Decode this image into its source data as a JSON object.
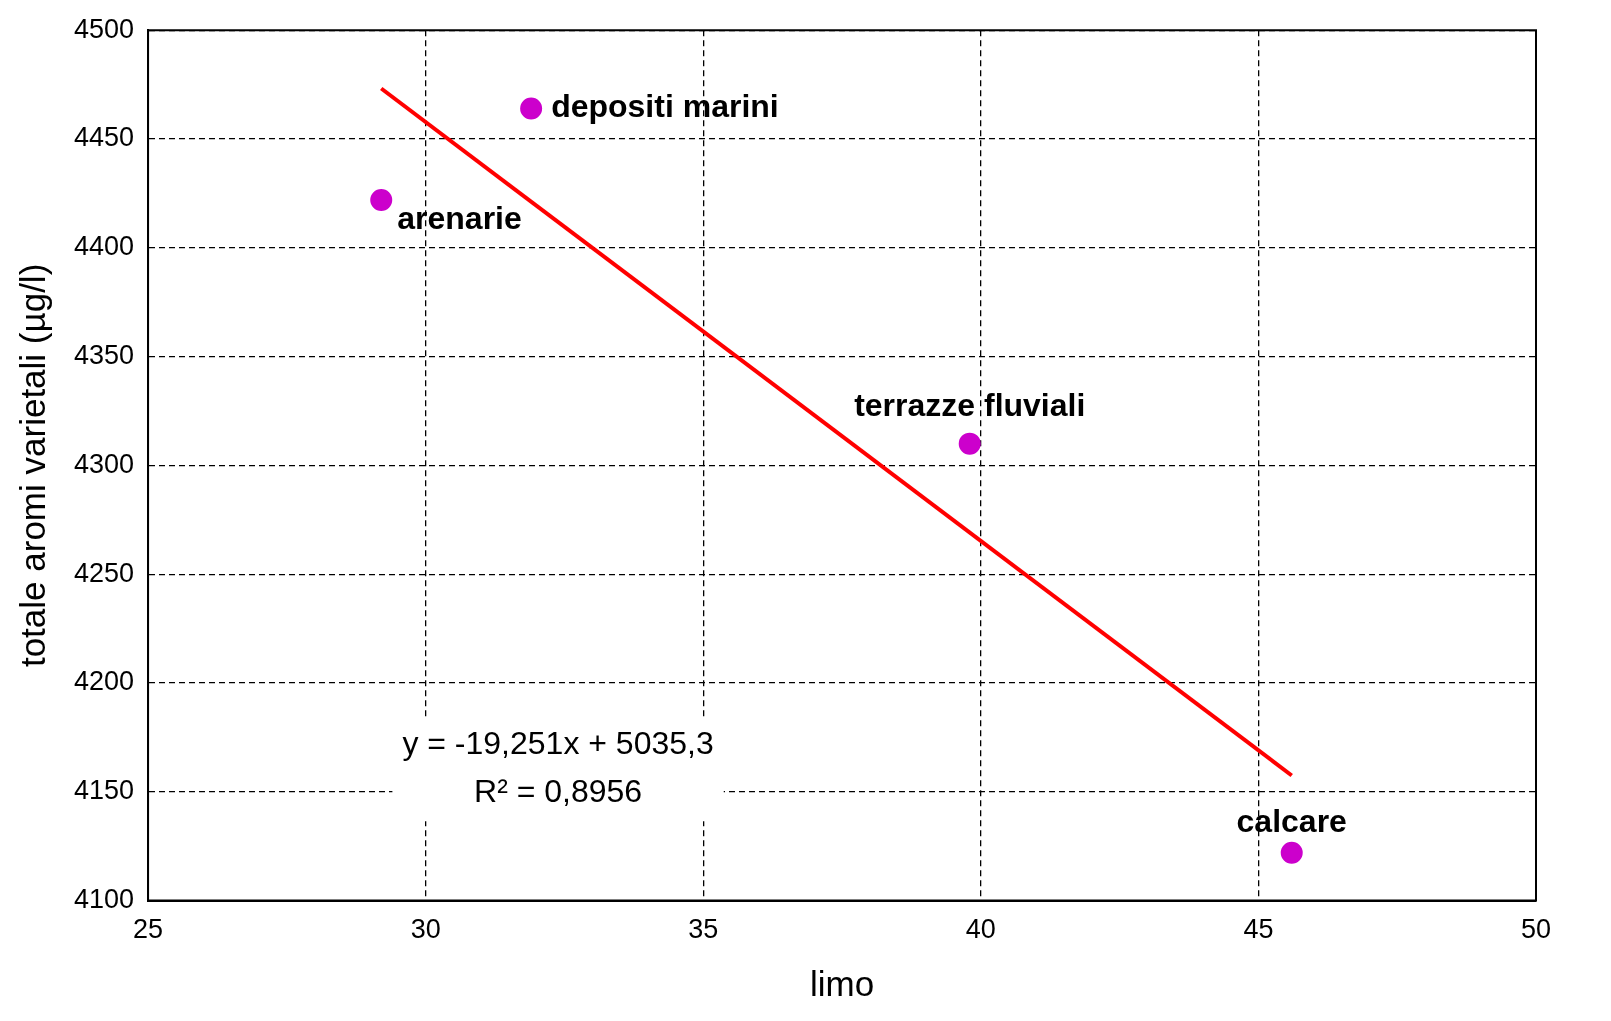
{
  "chart_data": {
    "type": "scatter",
    "xlabel": "limo",
    "ylabel": "totale aromi varietali (µg/l)",
    "xlim": [
      25,
      50
    ],
    "xticks": [
      25,
      30,
      35,
      40,
      45,
      50
    ],
    "ylim": [
      4100,
      4500
    ],
    "yticks": [
      4100,
      4150,
      4200,
      4250,
      4300,
      4350,
      4400,
      4450,
      4500
    ],
    "grid": true,
    "legend": false,
    "marker": "circle",
    "series": [
      {
        "type": "scatter",
        "color": "#cc00cc",
        "x": [
          29.2,
          31.9,
          39.8,
          45.6
        ],
        "values": [
          4422,
          4464,
          4310,
          4122
        ]
      },
      {
        "type": "line",
        "color": "#ff0000",
        "x": [
          29.2,
          45.6
        ],
        "values": [
          4473.2,
          4157.5
        ],
        "marker": "none",
        "line_style": "solid"
      }
    ],
    "annotations": [
      {
        "text": "arenarie",
        "x": 29.2,
        "y": 4422
      },
      {
        "text": "depositi marini",
        "x": 31.9,
        "y": 4464
      },
      {
        "text": "terrazze fluviali",
        "x": 39.8,
        "y": 4310
      },
      {
        "text": "calcare",
        "x": 45.6,
        "y": 4122
      },
      "y = -19,251x + 5035,3",
      "R² = 0,8956"
    ]
  }
}
